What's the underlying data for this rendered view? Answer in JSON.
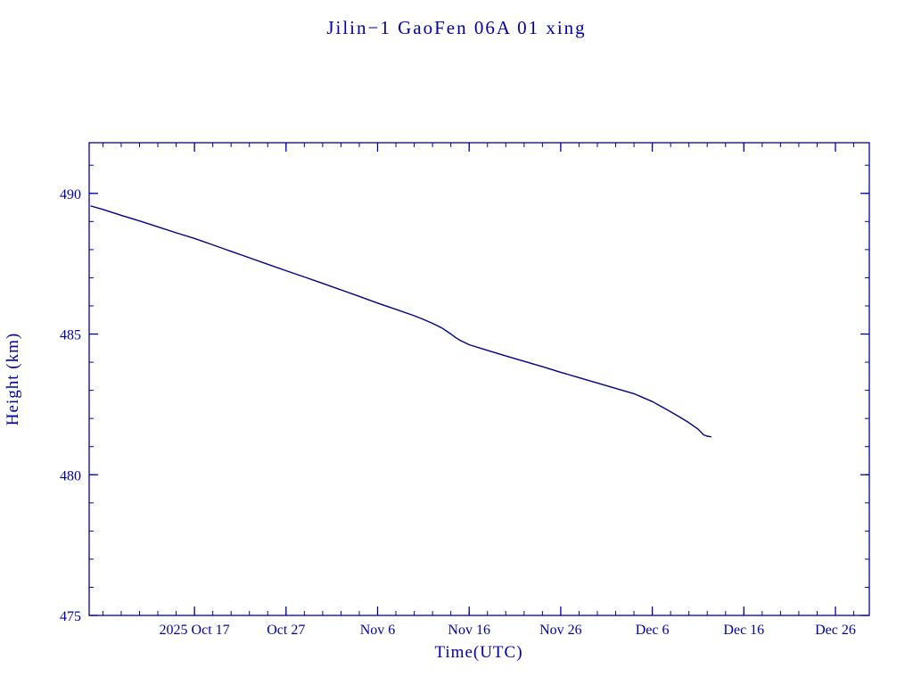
{
  "page": {
    "background": "#ffffff"
  },
  "chart_data": {
    "type": "line",
    "title": "Jilin−1 GaoFen 06A 01 xing",
    "xlabel": "Time(UTC)",
    "ylabel": "Height (km)",
    "x_unit": "days since 2025-10-01 (UTC)",
    "xlim": [
      4.5,
      89.7
    ],
    "ylim": [
      475,
      491.8
    ],
    "grid": false,
    "legend": false,
    "colors": {
      "axis": "#0000aa",
      "text": "#0000aa",
      "line": "#00008b",
      "background": "#ffffff"
    },
    "x_major_ticks": [
      {
        "x": 16,
        "label": "2025 Oct 17"
      },
      {
        "x": 26,
        "label": "Oct 27"
      },
      {
        "x": 36,
        "label": "Nov 6"
      },
      {
        "x": 46,
        "label": "Nov 16"
      },
      {
        "x": 56,
        "label": "Nov 26"
      },
      {
        "x": 66,
        "label": "Dec 6"
      },
      {
        "x": 76,
        "label": "Dec 16"
      },
      {
        "x": 86,
        "label": "Dec 26"
      }
    ],
    "x_minor_step": 2,
    "y_major_ticks": [
      {
        "v": 475,
        "label": "475"
      },
      {
        "v": 480,
        "label": "480"
      },
      {
        "v": 485,
        "label": "485"
      },
      {
        "v": 490,
        "label": "490"
      }
    ],
    "y_minor_step": 1,
    "series": [
      {
        "name": "height-km",
        "color": "#00008b",
        "points": [
          [
            4.7,
            489.55
          ],
          [
            6,
            489.43
          ],
          [
            8,
            489.22
          ],
          [
            10,
            489.02
          ],
          [
            12,
            488.81
          ],
          [
            14,
            488.6
          ],
          [
            16,
            488.4
          ],
          [
            18,
            488.17
          ],
          [
            20,
            487.94
          ],
          [
            22,
            487.71
          ],
          [
            24,
            487.48
          ],
          [
            26,
            487.25
          ],
          [
            28,
            487.03
          ],
          [
            30,
            486.8
          ],
          [
            32,
            486.57
          ],
          [
            34,
            486.34
          ],
          [
            36,
            486.1
          ],
          [
            38,
            485.88
          ],
          [
            40,
            485.65
          ],
          [
            41,
            485.52
          ],
          [
            42,
            485.38
          ],
          [
            43,
            485.22
          ],
          [
            44,
            485.0
          ],
          [
            44.5,
            484.88
          ],
          [
            45,
            484.78
          ],
          [
            46,
            484.62
          ],
          [
            48,
            484.42
          ],
          [
            50,
            484.22
          ],
          [
            52,
            484.03
          ],
          [
            54,
            483.84
          ],
          [
            56,
            483.64
          ],
          [
            58,
            483.45
          ],
          [
            60,
            483.26
          ],
          [
            62,
            483.07
          ],
          [
            64,
            482.88
          ],
          [
            65,
            482.74
          ],
          [
            66,
            482.6
          ],
          [
            67,
            482.42
          ],
          [
            68,
            482.24
          ],
          [
            69,
            482.05
          ],
          [
            70,
            481.85
          ],
          [
            71,
            481.62
          ],
          [
            71.6,
            481.42
          ],
          [
            72,
            481.37
          ],
          [
            72.4,
            481.35
          ]
        ]
      }
    ]
  }
}
